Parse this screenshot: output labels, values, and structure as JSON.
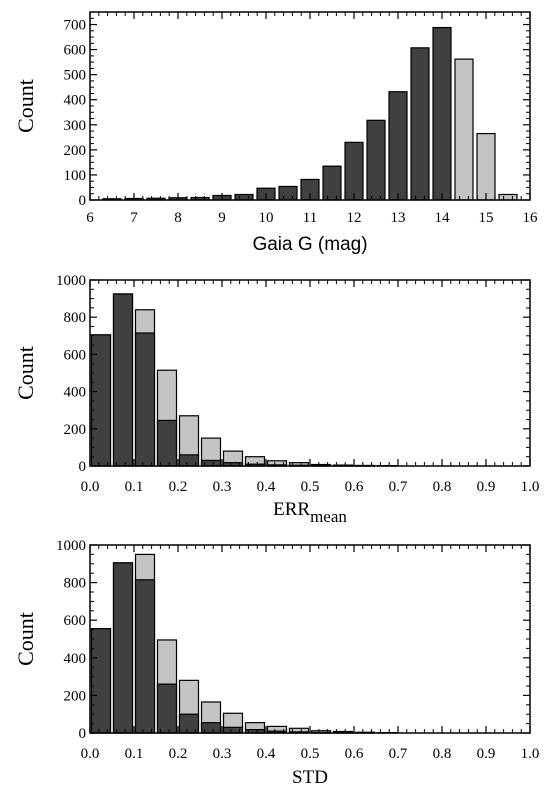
{
  "colors": {
    "dark": "#404040",
    "light": "#c4c4c4",
    "axis": "#000000"
  },
  "chart_data": [
    {
      "type": "bar",
      "title": "",
      "xlabel": "Gaia G (mag)",
      "ylabel": "Count",
      "xlim": [
        6,
        16
      ],
      "ylim": [
        0,
        750
      ],
      "xticks": [
        "6",
        "7",
        "8",
        "9",
        "10",
        "11",
        "12",
        "13",
        "14",
        "15",
        "16"
      ],
      "yticks": [
        "0",
        "100",
        "200",
        "300",
        "400",
        "500",
        "600",
        "700"
      ],
      "grid": false,
      "legend": "none",
      "bin_width": 0.5,
      "x": [
        6.5,
        7.0,
        7.5,
        8.0,
        8.5,
        9.0,
        9.5,
        10.0,
        10.5,
        11.0,
        11.5,
        12.0,
        12.5,
        13.0,
        13.5,
        14.0,
        14.5,
        15.0,
        15.5
      ],
      "series": [
        {
          "values": [
            5,
            6,
            7,
            9,
            10,
            18,
            22,
            47,
            54,
            82,
            135,
            230,
            318,
            432,
            607,
            688,
            0,
            0,
            0
          ]
        },
        {
          "values": [
            0,
            0,
            0,
            0,
            0,
            0,
            0,
            0,
            0,
            0,
            0,
            0,
            0,
            0,
            0,
            0,
            562,
            265,
            22
          ]
        }
      ]
    },
    {
      "type": "bar",
      "title": "",
      "xlabel": "ERR",
      "xlabel_sub": "mean",
      "ylabel": "Count",
      "xlim": [
        0,
        1
      ],
      "ylim": [
        0,
        1000
      ],
      "xticks": [
        "0.0",
        "0.1",
        "0.2",
        "0.3",
        "0.4",
        "0.5",
        "0.6",
        "0.7",
        "0.8",
        "0.9",
        "1.0"
      ],
      "yticks": [
        "0",
        "200",
        "400",
        "600",
        "800",
        "1000"
      ],
      "grid": false,
      "legend": "none",
      "bin_width": 0.05,
      "x": [
        0.0,
        0.05,
        0.1,
        0.15,
        0.2,
        0.25,
        0.3,
        0.35,
        0.4,
        0.45,
        0.5,
        0.55,
        0.6,
        0.65
      ],
      "series": [
        {
          "values": [
            705,
            925,
            715,
            245,
            60,
            30,
            18,
            10,
            6,
            4,
            2,
            1,
            1,
            0
          ]
        },
        {
          "values": [
            705,
            925,
            840,
            515,
            270,
            150,
            80,
            50,
            28,
            18,
            8,
            5,
            3,
            2
          ]
        }
      ]
    },
    {
      "type": "bar",
      "title": "",
      "xlabel": "STD",
      "ylabel": "Count",
      "xlim": [
        0,
        1
      ],
      "ylim": [
        0,
        1000
      ],
      "xticks": [
        "0.0",
        "0.1",
        "0.2",
        "0.3",
        "0.4",
        "0.5",
        "0.6",
        "0.7",
        "0.8",
        "0.9",
        "1.0"
      ],
      "yticks": [
        "0",
        "200",
        "400",
        "600",
        "800",
        "1000"
      ],
      "grid": false,
      "legend": "none",
      "bin_width": 0.05,
      "x": [
        0.0,
        0.05,
        0.1,
        0.15,
        0.2,
        0.25,
        0.3,
        0.35,
        0.4,
        0.45,
        0.5,
        0.55,
        0.6,
        0.65
      ],
      "series": [
        {
          "values": [
            555,
            905,
            815,
            260,
            100,
            55,
            30,
            18,
            10,
            6,
            3,
            2,
            1,
            0
          ]
        },
        {
          "values": [
            555,
            905,
            950,
            495,
            280,
            165,
            105,
            55,
            35,
            25,
            12,
            8,
            4,
            2
          ]
        }
      ]
    }
  ]
}
